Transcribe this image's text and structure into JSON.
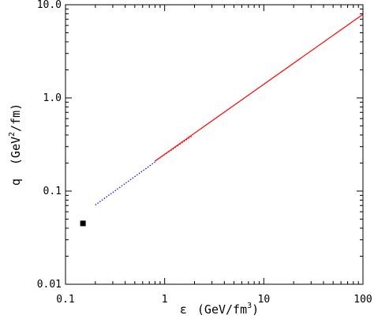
{
  "chart_data": {
    "type": "line",
    "xscale": "log",
    "yscale": "log",
    "xlim": [
      0.1,
      100
    ],
    "ylim": [
      0.01,
      10
    ],
    "xlabel_parts": {
      "symbol": "ε",
      "pre": "(GeV/fm",
      "sup": "3",
      "post": ")"
    },
    "ylabel_parts": {
      "symbol": "q",
      "pre": "(GeV",
      "sup": "2",
      "post": "/fm)"
    },
    "xticks": [
      {
        "value": 0.1,
        "label": "0.1"
      },
      {
        "value": 1,
        "label": "1"
      },
      {
        "value": 10,
        "label": "10"
      },
      {
        "value": 100,
        "label": "100"
      }
    ],
    "yticks": [
      {
        "value": 0.01,
        "label": "0.01"
      },
      {
        "value": 0.1,
        "label": "0.1"
      },
      {
        "value": 1,
        "label": "1.0"
      },
      {
        "value": 10,
        "label": "10.0"
      }
    ],
    "grid": false,
    "series": [
      {
        "style": "solid",
        "color": "#ff0000",
        "x": [
          0.8,
          100
        ],
        "y": [
          0.21,
          7.9
        ]
      },
      {
        "style": "dotted",
        "color": "#0000ff",
        "x": [
          0.2,
          0.8
        ],
        "y": [
          0.071,
          0.205
        ]
      },
      {
        "style": "dotted",
        "color": "#ff0000",
        "x": [
          0.8,
          1.9
        ],
        "y": [
          0.21,
          0.39
        ]
      }
    ],
    "points": [
      {
        "marker": "square",
        "color": "#000000",
        "x": 0.15,
        "y": 0.045
      }
    ]
  }
}
